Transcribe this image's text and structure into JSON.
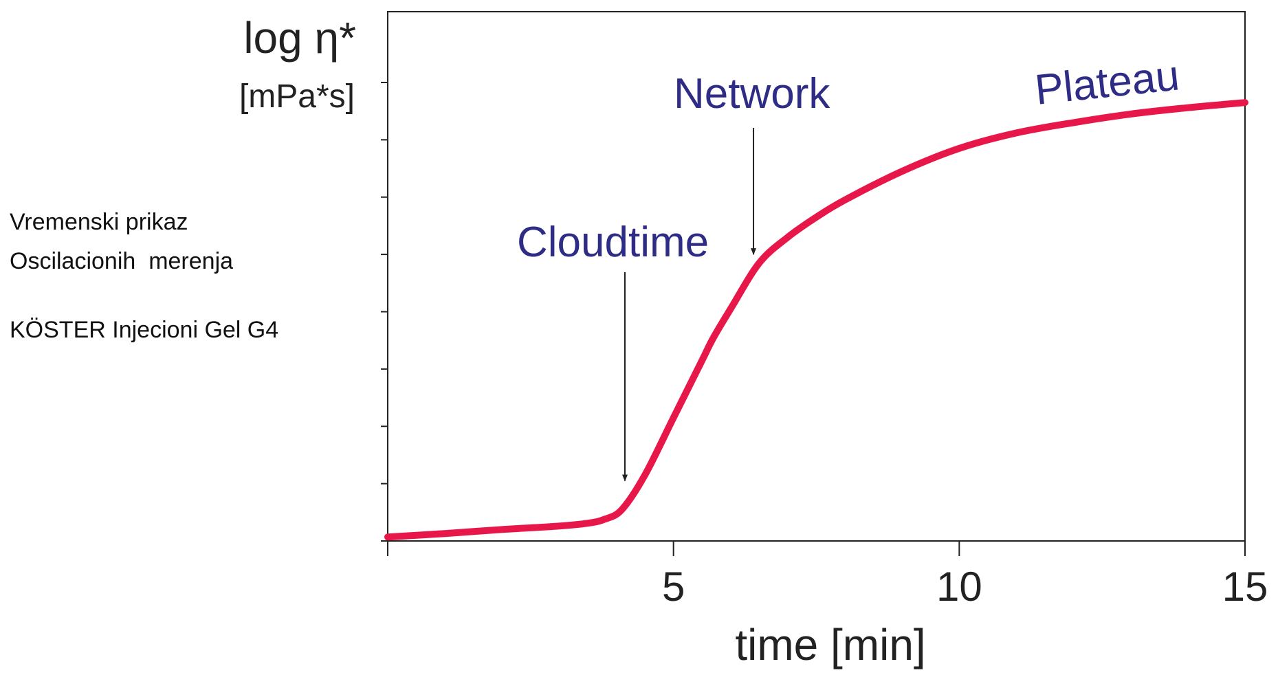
{
  "notes": {
    "line1": "Vremenski prikaz",
    "line2": "Oscilacionih  merenja",
    "line3": "KÖSTER Injecioni Gel G4"
  },
  "chart_data": {
    "type": "line",
    "title": "",
    "ylabel": "log η*",
    "ylabel_unit": "[mPa*s]",
    "xlabel": "time [min]",
    "xlim": [
      0,
      15
    ],
    "xticks": [
      5,
      10,
      15
    ],
    "xtick_labels": [
      "5",
      "10",
      "15"
    ],
    "ylim": [
      0,
      8
    ],
    "yticks": [
      0,
      1,
      2,
      3,
      4,
      5,
      6,
      7,
      8
    ],
    "ytick_labels": [
      "",
      "",
      "",
      "",
      "",
      "",
      "",
      "",
      ""
    ],
    "grid": false,
    "legend": "none",
    "series": [
      {
        "x": [
          0,
          1,
          2,
          3,
          3.5,
          3.8,
          4.1,
          4.5,
          5.0,
          5.5,
          5.7,
          6.0,
          6.5,
          7.0,
          7.5,
          8.0,
          9.0,
          10.0,
          11.0,
          12.0,
          13.0,
          14.0,
          15.0
        ],
        "y": [
          0.07,
          0.13,
          0.2,
          0.26,
          0.31,
          0.38,
          0.55,
          1.15,
          2.15,
          3.15,
          3.55,
          4.05,
          4.85,
          5.3,
          5.65,
          5.95,
          6.45,
          6.85,
          7.12,
          7.3,
          7.45,
          7.56,
          7.65
        ],
        "color": "#e8174a"
      }
    ],
    "annotations": [
      {
        "text": "Cloudtime",
        "arrow_to": [
          4.15,
          1.05
        ],
        "color": "#2e2c85"
      },
      {
        "text": "Network",
        "arrow_to": [
          6.4,
          5.0
        ],
        "color": "#2e2c85"
      },
      {
        "text": "Plateau",
        "color": "#2e2c85"
      }
    ]
  }
}
